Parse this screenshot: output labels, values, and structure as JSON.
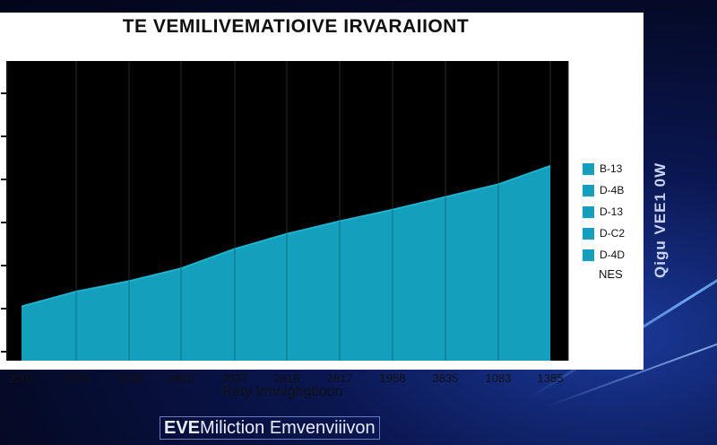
{
  "chart_data": {
    "type": "area",
    "title": "TE VEMILIVEMATIOIVE IRVARAIIONT",
    "xlabel": "Rety Irmnighgtioon",
    "ylabel": "",
    "categories": [
      "2003",
      "3020",
      "2839",
      "2810",
      "2837",
      "2818",
      "2817",
      "1958",
      "3835",
      "1083",
      "1385"
    ],
    "values": [
      47,
      60,
      69,
      80,
      97,
      110,
      121,
      131,
      142,
      153,
      169
    ],
    "ylim": [
      0,
      260
    ],
    "ytick_count": 7,
    "grid": "vertical",
    "legend_position": "right",
    "legend": [
      "B-13",
      "D-4B",
      "D-13",
      "D-C2",
      "D-4D"
    ],
    "legend_extra": "NES",
    "series_color": "#14a0bd",
    "plot_background": "#000000"
  },
  "side_text": "Qigu VEE1 0W",
  "footer": {
    "prefix": "EVE",
    "rest": "Miliction Emvenviiivon"
  }
}
